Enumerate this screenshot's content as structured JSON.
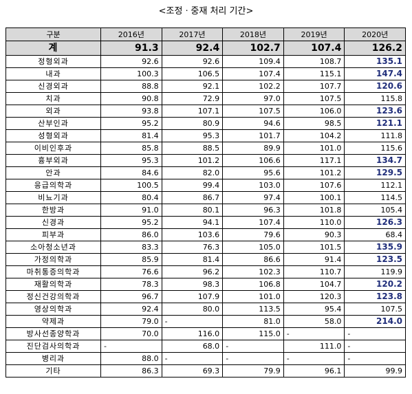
{
  "title": "<조정ㆍ중재 처리 기간>",
  "table": {
    "header": [
      "구분",
      "2016년",
      "2017년",
      "2018년",
      "2019년",
      "2020년"
    ],
    "total": {
      "label": "계",
      "values": [
        "91.3",
        "92.4",
        "102.7",
        "107.4",
        "126.2"
      ]
    },
    "rows": [
      {
        "label": "정형외과",
        "values": [
          "92.6",
          "92.6",
          "109.4",
          "108.7",
          "135.1"
        ],
        "highlight": true
      },
      {
        "label": "내과",
        "values": [
          "100.3",
          "106.5",
          "107.4",
          "115.1",
          "147.4"
        ],
        "highlight": true
      },
      {
        "label": "신경외과",
        "values": [
          "88.8",
          "92.1",
          "102.2",
          "107.7",
          "120.6"
        ],
        "highlight": true
      },
      {
        "label": "치과",
        "values": [
          "90.8",
          "72.9",
          "97.0",
          "107.5",
          "115.8"
        ],
        "highlight": false
      },
      {
        "label": "외과",
        "values": [
          "93.8",
          "107.1",
          "107.5",
          "106.0",
          "123.6"
        ],
        "highlight": true
      },
      {
        "label": "산부인과",
        "values": [
          "95.2",
          "80.9",
          "94.6",
          "98.5",
          "121.1"
        ],
        "highlight": true
      },
      {
        "label": "성형외과",
        "values": [
          "81.4",
          "95.3",
          "101.7",
          "104.2",
          "111.8"
        ],
        "highlight": false
      },
      {
        "label": "이비인후과",
        "values": [
          "85.8",
          "88.5",
          "89.9",
          "101.0",
          "115.6"
        ],
        "highlight": false
      },
      {
        "label": "흉부외과",
        "values": [
          "95.3",
          "101.2",
          "106.6",
          "117.1",
          "134.7"
        ],
        "highlight": true
      },
      {
        "label": "안과",
        "values": [
          "84.6",
          "82.0",
          "95.6",
          "101.2",
          "129.5"
        ],
        "highlight": true
      },
      {
        "label": "응급의학과",
        "values": [
          "100.5",
          "99.4",
          "103.0",
          "107.6",
          "112.1"
        ],
        "highlight": false
      },
      {
        "label": "비뇨기과",
        "values": [
          "80.4",
          "86.7",
          "97.4",
          "100.1",
          "114.5"
        ],
        "highlight": false
      },
      {
        "label": "한방과",
        "values": [
          "91.0",
          "80.1",
          "96.3",
          "101.8",
          "105.4"
        ],
        "highlight": false
      },
      {
        "label": "신경과",
        "values": [
          "95.2",
          "94.1",
          "107.4",
          "110.0",
          "126.3"
        ],
        "highlight": true
      },
      {
        "label": "피부과",
        "values": [
          "86.0",
          "103.6",
          "79.6",
          "90.3",
          "68.4"
        ],
        "highlight": false
      },
      {
        "label": "소아청소년과",
        "values": [
          "83.3",
          "76.3",
          "105.0",
          "101.5",
          "135.9"
        ],
        "highlight": true
      },
      {
        "label": "가정의학과",
        "values": [
          "85.9",
          "81.4",
          "86.6",
          "91.4",
          "123.5"
        ],
        "highlight": true
      },
      {
        "label": "마취통증의학과",
        "values": [
          "76.6",
          "96.2",
          "102.3",
          "110.7",
          "119.9"
        ],
        "highlight": false
      },
      {
        "label": "재활의학과",
        "values": [
          "78.3",
          "98.3",
          "106.8",
          "104.7",
          "120.2"
        ],
        "highlight": true
      },
      {
        "label": "정신건강의학과",
        "values": [
          "96.7",
          "107.9",
          "101.0",
          "120.3",
          "123.8"
        ],
        "highlight": true
      },
      {
        "label": "영상의학과",
        "values": [
          "92.4",
          "80.0",
          "113.5",
          "95.4",
          "107.5"
        ],
        "highlight": false
      },
      {
        "label": "약제과",
        "values": [
          "79.0",
          "-",
          "81.0",
          "58.0",
          "214.0"
        ],
        "highlight": true
      },
      {
        "label": "방사선종양학과",
        "values": [
          "70.0",
          "116.0",
          "115.0",
          "-",
          "-"
        ],
        "highlight": false
      },
      {
        "label": "진단검사의학과",
        "values": [
          "-",
          "68.0",
          "-",
          "111.0",
          "-"
        ],
        "highlight": false
      },
      {
        "label": "병리과",
        "values": [
          "88.0",
          "-",
          "-",
          "-",
          "-"
        ],
        "highlight": false
      },
      {
        "label": "기타",
        "values": [
          "86.3",
          "69.3",
          "79.9",
          "96.1",
          "99.9"
        ],
        "highlight": false
      }
    ]
  }
}
